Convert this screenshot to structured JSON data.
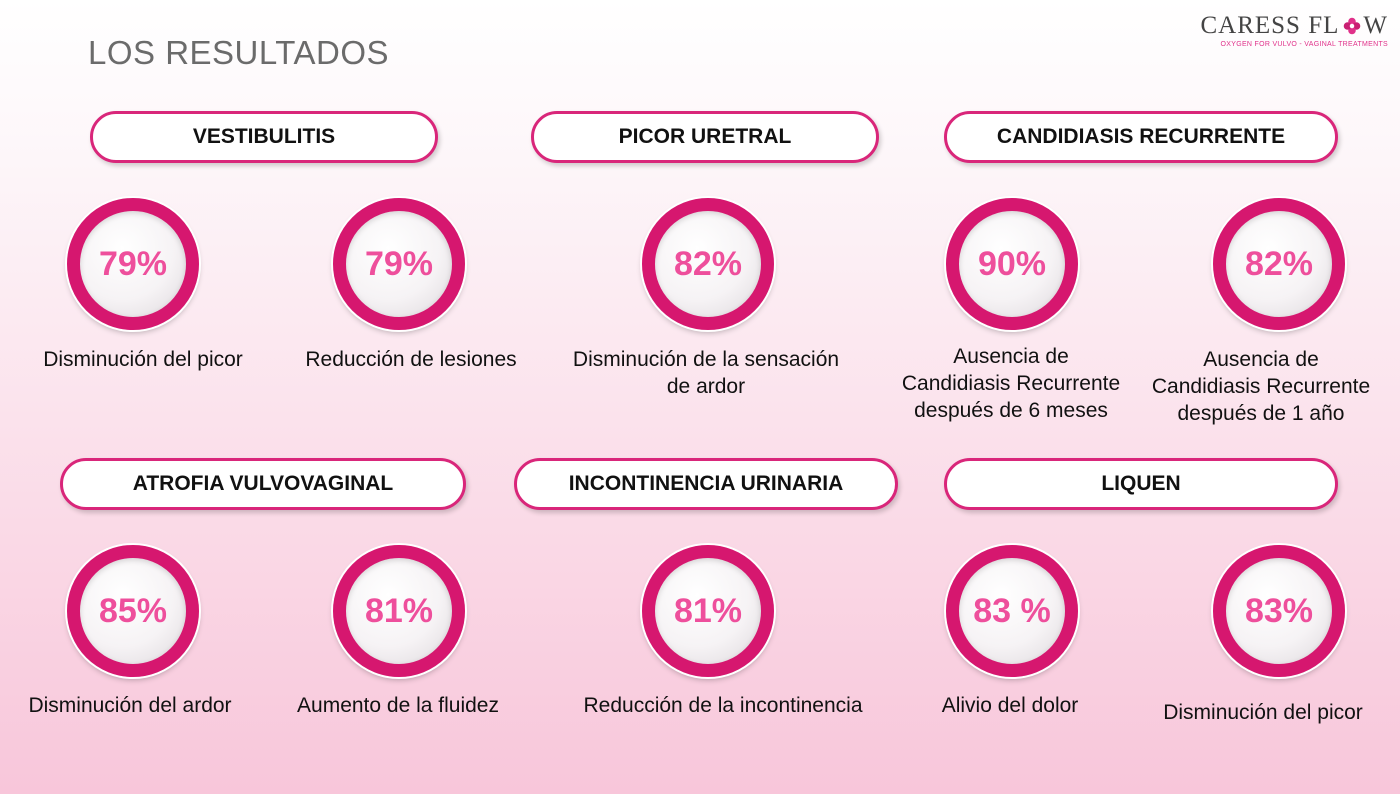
{
  "title": "LOS RESULTADOS",
  "logo": {
    "name_part1": "CARESS FL",
    "name_part2": "W",
    "tagline": "OXYGEN FOR VULVO - VAGINAL TREATMENTS",
    "icon": "flower-icon",
    "accent": "#d6176f"
  },
  "colors": {
    "ring": "#d6176f",
    "percent": "#ee4f9c",
    "pill_border": "#d9267a"
  },
  "categories": [
    "VESTIBULITIS",
    "PICOR URETRAL",
    "CANDIDIASIS RECURRENTE",
    "ATROFIA VULVOVAGINAL",
    "INCONTINENCIA URINARIA",
    "LIQUEN"
  ],
  "stats": [
    {
      "value": "79%",
      "lines": [
        "Disminución del picor"
      ]
    },
    {
      "value": "79%",
      "lines": [
        "Reducción de lesiones"
      ]
    },
    {
      "value": "82%",
      "lines": [
        "Disminución de la sensación",
        "de ardor"
      ]
    },
    {
      "value": "90%",
      "lines": [
        "Ausencia de",
        "Candidiasis Recurrente",
        "después de 6 meses"
      ]
    },
    {
      "value": "82%",
      "lines": [
        "Ausencia de",
        "Candidiasis Recurrente",
        "después de 1 año"
      ]
    },
    {
      "value": "85%",
      "lines": [
        "Disminución del ardor"
      ]
    },
    {
      "value": "81%",
      "lines": [
        "Aumento de la fluidez"
      ]
    },
    {
      "value": "81%",
      "lines": [
        "Reducción de la incontinencia"
      ]
    },
    {
      "value": "83 %",
      "lines": [
        "Alivio del dolor"
      ]
    },
    {
      "value": "83%",
      "lines": [
        "Disminución del picor"
      ]
    }
  ]
}
